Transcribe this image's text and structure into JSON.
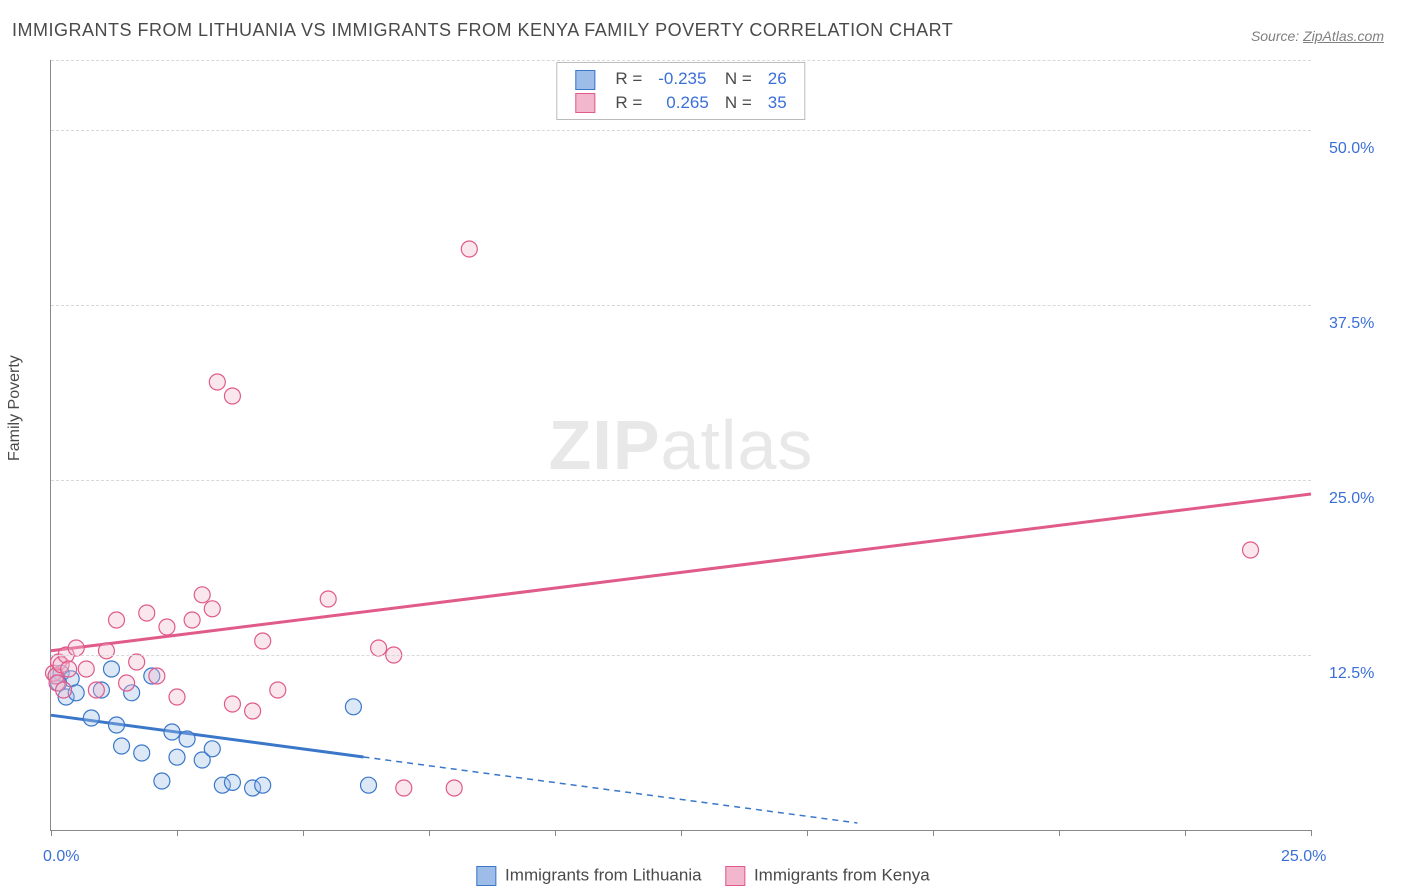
{
  "title": "IMMIGRANTS FROM LITHUANIA VS IMMIGRANTS FROM KENYA FAMILY POVERTY CORRELATION CHART",
  "source_prefix": "Source: ",
  "source_link": "ZipAtlas.com",
  "ylabel": "Family Poverty",
  "watermark_bold": "ZIP",
  "watermark_rest": "atlas",
  "chart": {
    "type": "scatter",
    "xlim": [
      0,
      25
    ],
    "ylim": [
      0,
      55
    ],
    "x_tick_positions": [
      0,
      2.5,
      5,
      7.5,
      10,
      12.5,
      15,
      17.5,
      20,
      22.5,
      25
    ],
    "x_tick_labels": {
      "0": "0.0%",
      "25": "25.0%"
    },
    "y_gridlines": [
      12.5,
      25,
      37.5,
      50,
      55
    ],
    "y_tick_labels": {
      "12.5": "12.5%",
      "25": "25.0%",
      "37.5": "37.5%",
      "50": "50.0%"
    },
    "marker_radius": 8,
    "marker_stroke_width": 1.2,
    "marker_fill_opacity": 0.35,
    "background": "#ffffff",
    "grid_color": "#d8d8d8",
    "axis_color": "#888888",
    "series": [
      {
        "key": "lithuania",
        "label": "Immigrants from Lithuania",
        "color_stroke": "#3a77c9",
        "color_fill": "#9dbce8",
        "R": "-0.235",
        "N": "26",
        "trend": {
          "x1": 0,
          "y1": 8.2,
          "x2": 16,
          "y2": 0.5,
          "solid_until_x": 6.2
        },
        "points": [
          [
            0.1,
            11.0
          ],
          [
            0.2,
            11.2
          ],
          [
            0.4,
            10.8
          ],
          [
            0.15,
            10.5
          ],
          [
            0.3,
            9.5
          ],
          [
            0.5,
            9.8
          ],
          [
            0.8,
            8.0
          ],
          [
            1.0,
            10.0
          ],
          [
            1.2,
            11.5
          ],
          [
            1.3,
            7.5
          ],
          [
            1.4,
            6.0
          ],
          [
            1.6,
            9.8
          ],
          [
            1.8,
            5.5
          ],
          [
            2.0,
            11.0
          ],
          [
            2.2,
            3.5
          ],
          [
            2.4,
            7.0
          ],
          [
            2.5,
            5.2
          ],
          [
            2.7,
            6.5
          ],
          [
            3.0,
            5.0
          ],
          [
            3.2,
            5.8
          ],
          [
            3.4,
            3.2
          ],
          [
            3.6,
            3.4
          ],
          [
            4.0,
            3.0
          ],
          [
            4.2,
            3.2
          ],
          [
            6.0,
            8.8
          ],
          [
            6.3,
            3.2
          ]
        ]
      },
      {
        "key": "kenya",
        "label": "Immigrants from Kenya",
        "color_stroke": "#e05a8a",
        "color_fill": "#f2b7cc",
        "R": "0.265",
        "N": "35",
        "trend": {
          "x1": 0,
          "y1": 12.8,
          "x2": 25,
          "y2": 24.0,
          "solid_until_x": 25
        },
        "points": [
          [
            0.05,
            11.2
          ],
          [
            0.1,
            11.0
          ],
          [
            0.12,
            10.5
          ],
          [
            0.15,
            12.0
          ],
          [
            0.2,
            11.8
          ],
          [
            0.25,
            10.0
          ],
          [
            0.3,
            12.5
          ],
          [
            0.35,
            11.5
          ],
          [
            0.5,
            13.0
          ],
          [
            0.7,
            11.5
          ],
          [
            0.9,
            10.0
          ],
          [
            1.1,
            12.8
          ],
          [
            1.3,
            15.0
          ],
          [
            1.5,
            10.5
          ],
          [
            1.7,
            12.0
          ],
          [
            1.9,
            15.5
          ],
          [
            2.1,
            11.0
          ],
          [
            2.3,
            14.5
          ],
          [
            2.5,
            9.5
          ],
          [
            2.8,
            15.0
          ],
          [
            3.0,
            16.8
          ],
          [
            3.2,
            15.8
          ],
          [
            3.3,
            32.0
          ],
          [
            3.6,
            9.0
          ],
          [
            3.6,
            31.0
          ],
          [
            4.0,
            8.5
          ],
          [
            4.2,
            13.5
          ],
          [
            4.5,
            10.0
          ],
          [
            5.5,
            16.5
          ],
          [
            6.5,
            13.0
          ],
          [
            7.0,
            3.0
          ],
          [
            8.3,
            41.5
          ],
          [
            8.0,
            3.0
          ],
          [
            23.8,
            20.0
          ],
          [
            6.8,
            12.5
          ]
        ]
      }
    ]
  },
  "legend_labels": {
    "R": "R",
    "N": "N",
    "equals": "="
  }
}
